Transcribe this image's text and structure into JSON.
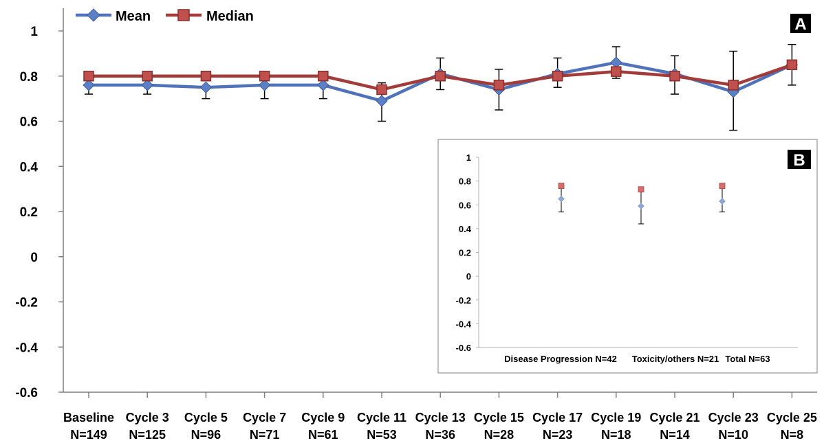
{
  "chart_data": [
    {
      "panel": "A",
      "type": "line",
      "ylim": [
        -0.6,
        1
      ],
      "yticks": [
        "1",
        "0.8",
        "0.6",
        "0.4",
        "0.2",
        "0",
        "-0.2",
        "-0.4",
        "-0.6"
      ],
      "categories": [
        {
          "name": "Baseline",
          "n": "N=149"
        },
        {
          "name": "Cycle 3",
          "n": "N=125"
        },
        {
          "name": "Cycle 5",
          "n": "N=96"
        },
        {
          "name": "Cycle 7",
          "n": "N=71"
        },
        {
          "name": "Cycle 9",
          "n": "N=61"
        },
        {
          "name": "Cycle 11",
          "n": "N=53"
        },
        {
          "name": "Cycle 13",
          "n": "N=36"
        },
        {
          "name": "Cycle 15",
          "n": "N=28"
        },
        {
          "name": "Cycle 17",
          "n": "N=23"
        },
        {
          "name": "Cycle 19",
          "n": "N=18"
        },
        {
          "name": "Cycle 21",
          "n": "N=14"
        },
        {
          "name": "Cycle 23",
          "n": "N=10"
        },
        {
          "name": "Cycle 25",
          "n": "N=8"
        }
      ],
      "series": [
        {
          "name": "Mean",
          "color": "#4f72b8",
          "marker": "diamond",
          "values": [
            0.76,
            0.76,
            0.75,
            0.76,
            0.76,
            0.69,
            0.81,
            0.74,
            0.81,
            0.86,
            0.81,
            0.73,
            0.85
          ],
          "error_low": [
            0.72,
            0.72,
            0.7,
            0.7,
            0.7,
            0.6,
            0.74,
            0.65,
            0.75,
            0.79,
            0.72,
            0.56,
            0.76
          ],
          "error_high": [
            0.76,
            0.76,
            0.75,
            0.76,
            0.76,
            0.77,
            0.88,
            0.83,
            0.88,
            0.93,
            0.89,
            0.91,
            0.94
          ]
        },
        {
          "name": "Median",
          "color": "#a23c3a",
          "marker": "square",
          "values": [
            0.8,
            0.8,
            0.8,
            0.8,
            0.8,
            0.74,
            0.8,
            0.76,
            0.8,
            0.82,
            0.8,
            0.76,
            0.85
          ]
        }
      ],
      "legend_position": "top-left",
      "grid": false
    },
    {
      "panel": "B",
      "type": "scatter",
      "ylim": [
        -0.6,
        1
      ],
      "yticks": [
        "1",
        "0.8",
        "0.6",
        "0.4",
        "0.2",
        "0",
        "-0.2",
        "-0.4",
        "-0.6"
      ],
      "categories": [
        "Disease Progression N=42",
        "Toxicity/others N=21",
        "Total N=63"
      ],
      "series": [
        {
          "name": "Mean",
          "color": "#8da6d6",
          "marker": "diamond",
          "values": [
            0.65,
            0.59,
            0.63
          ],
          "error_low": [
            0.54,
            0.44,
            0.54
          ],
          "error_high": [
            0.76,
            0.74,
            0.76
          ]
        },
        {
          "name": "Median",
          "color": "#d86e6c",
          "marker": "square",
          "values": [
            0.76,
            0.73,
            0.76
          ]
        }
      ],
      "grid": false
    }
  ]
}
